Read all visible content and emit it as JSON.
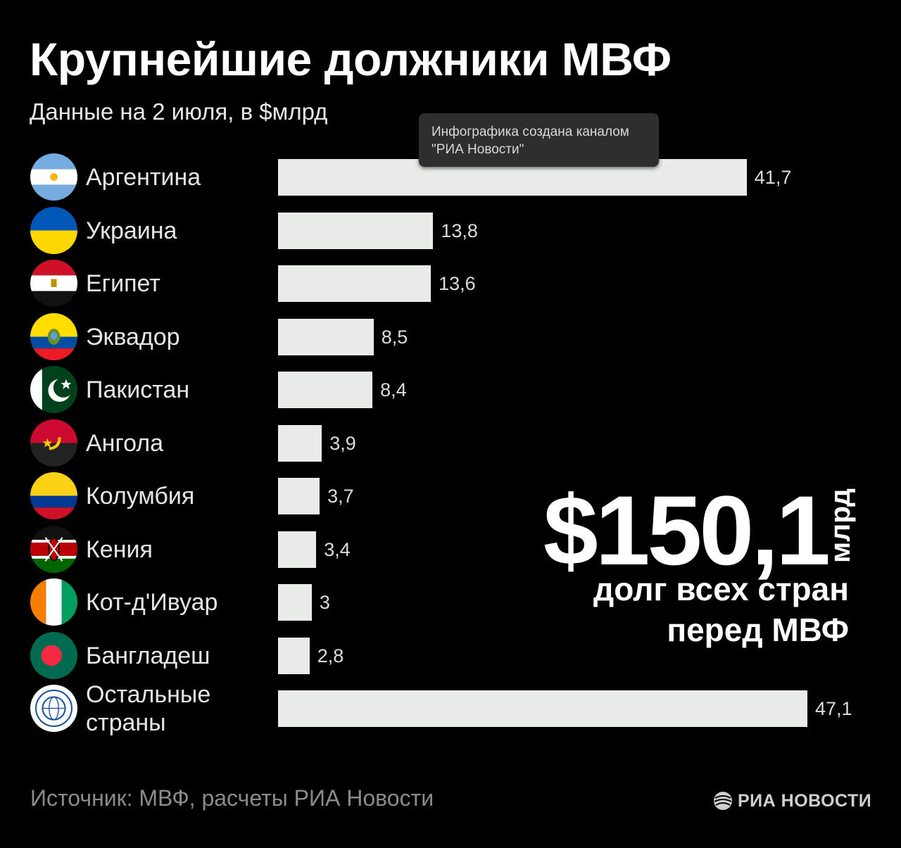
{
  "header": {
    "title": "Крупнейшие должники МВФ",
    "subtitle": "Данные на 2 июля, в $млрд"
  },
  "tooltip": {
    "line1": "Инфографика создана каналом",
    "line2": "\"РИА Новости\""
  },
  "chart_data": {
    "type": "bar",
    "orientation": "horizontal",
    "categories": [
      "Аргентина",
      "Украина",
      "Египет",
      "Эквадор",
      "Пакистан",
      "Ангола",
      "Колумбия",
      "Кения",
      "Кот-д'Ивуар",
      "Бангладеш",
      "Остальные страны"
    ],
    "category_lines": [
      [
        "Аргентина"
      ],
      [
        "Украина"
      ],
      [
        "Египет"
      ],
      [
        "Эквадор"
      ],
      [
        "Пакистан"
      ],
      [
        "Ангола"
      ],
      [
        "Колумбия"
      ],
      [
        "Кения"
      ],
      [
        "Кот-д'Ивуар"
      ],
      [
        "Бангладеш"
      ],
      [
        "Остальные",
        "страны"
      ]
    ],
    "values": [
      41.7,
      13.8,
      13.6,
      8.5,
      8.4,
      3.9,
      3.7,
      3.4,
      3,
      2.8,
      47.1
    ],
    "value_labels": [
      "41,7",
      "13,8",
      "13,6",
      "8,5",
      "8,4",
      "3,9",
      "3,7",
      "3,4",
      "3",
      "2,8",
      "47,1"
    ],
    "flag_icons": [
      "argentina-flag-icon",
      "ukraine-flag-icon",
      "egypt-flag-icon",
      "ecuador-flag-icon",
      "pakistan-flag-icon",
      "angola-flag-icon",
      "colombia-flag-icon",
      "kenya-flag-icon",
      "cote-divoire-flag-icon",
      "bangladesh-flag-icon",
      "imf-logo-icon"
    ],
    "title": "Крупнейшие должники МВФ",
    "xlim": [
      0,
      47.1
    ],
    "grid": false,
    "bar_color": "#e9ebe8"
  },
  "total": {
    "amount": "$150,1",
    "unit": "млрд",
    "description_line1": "долг всех стран",
    "description_line2": "перед МВФ"
  },
  "footer": {
    "source": "Источник: МВФ, расчеты РИА Новости",
    "logo_text": "РИА НОВОСТИ"
  },
  "colors": {
    "background": "#000000",
    "bar": "#e9ebe8",
    "text": "#ffffff",
    "source_text": "#8b8b8b"
  }
}
